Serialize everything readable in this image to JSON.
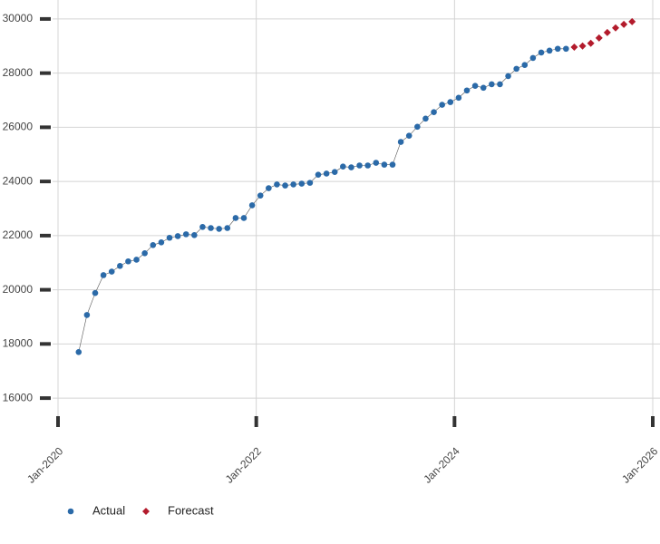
{
  "chart_data": {
    "type": "scatter",
    "x": [
      "2020-03",
      "2020-04",
      "2020-05",
      "2020-06",
      "2020-07",
      "2020-08",
      "2020-09",
      "2020-10",
      "2020-11",
      "2020-12",
      "2021-01",
      "2021-02",
      "2021-03",
      "2021-04",
      "2021-05",
      "2021-06",
      "2021-07",
      "2021-08",
      "2021-09",
      "2021-10",
      "2021-11",
      "2021-12",
      "2022-01",
      "2022-02",
      "2022-03",
      "2022-04",
      "2022-05",
      "2022-06",
      "2022-07",
      "2022-08",
      "2022-09",
      "2022-10",
      "2022-11",
      "2022-12",
      "2023-01",
      "2023-02",
      "2023-03",
      "2023-04",
      "2023-05",
      "2023-06",
      "2023-07",
      "2023-08",
      "2023-09",
      "2023-10",
      "2023-11",
      "2023-12",
      "2024-01",
      "2024-02",
      "2024-03",
      "2024-04",
      "2024-05",
      "2024-06",
      "2024-07",
      "2024-08",
      "2024-09",
      "2024-10",
      "2024-11",
      "2024-12",
      "2025-01",
      "2025-02",
      "2025-03",
      "2025-04",
      "2025-05",
      "2025-06",
      "2025-07",
      "2025-08",
      "2025-09",
      "2025-10"
    ],
    "series": [
      {
        "name": "Actual",
        "color": "#2b6aa8",
        "marker": "circle",
        "line": true,
        "values": [
          17700,
          19070,
          19880,
          20540,
          20670,
          20880,
          21050,
          21110,
          21350,
          21650,
          21750,
          21920,
          21980,
          22050,
          22020,
          22320,
          22280,
          22250,
          22280,
          22650,
          22650,
          23120,
          23480,
          23750,
          23890,
          23850,
          23890,
          23920,
          23950,
          24250,
          24290,
          24350,
          24550,
          24520,
          24590,
          24590,
          24690,
          24620,
          24620,
          25460,
          25690,
          26020,
          26320,
          26560,
          26830,
          26930,
          27090,
          27360,
          27530,
          27460,
          27590,
          27590,
          27890,
          28160,
          28300,
          28560,
          28760,
          28830,
          28900,
          28900,
          null,
          null,
          null,
          null,
          null,
          null,
          null,
          null
        ]
      },
      {
        "name": "Forecast",
        "color": "#b31b2c",
        "marker": "diamond",
        "line": false,
        "values": [
          null,
          null,
          null,
          null,
          null,
          null,
          null,
          null,
          null,
          null,
          null,
          null,
          null,
          null,
          null,
          null,
          null,
          null,
          null,
          null,
          null,
          null,
          null,
          null,
          null,
          null,
          null,
          null,
          null,
          null,
          null,
          null,
          null,
          null,
          null,
          null,
          null,
          null,
          null,
          null,
          null,
          null,
          null,
          null,
          null,
          null,
          null,
          null,
          null,
          null,
          null,
          null,
          null,
          null,
          null,
          null,
          null,
          null,
          null,
          null,
          28960,
          29000,
          29100,
          29300,
          29500,
          29670,
          29800,
          29900
        ]
      }
    ],
    "xlim": [
      "2020-01",
      "2026-01"
    ],
    "xticks": [
      {
        "value": "2020-01",
        "label": "Jan-2020"
      },
      {
        "value": "2022-01",
        "label": "Jan-2022"
      },
      {
        "value": "2024-01",
        "label": "Jan-2024"
      },
      {
        "value": "2026-01",
        "label": "Jan-2026"
      }
    ],
    "ylim": [
      15300,
      30700
    ],
    "yticks": [
      16000,
      18000,
      20000,
      22000,
      24000,
      26000,
      28000,
      30000
    ],
    "grid": true
  }
}
